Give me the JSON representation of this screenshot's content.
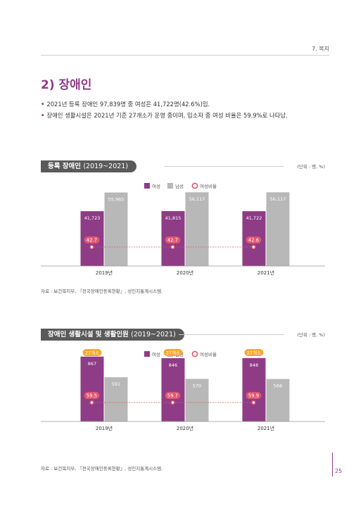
{
  "header": {
    "section_label": "7. 복지"
  },
  "page": {
    "title": "2) 장애인",
    "number": "25"
  },
  "bullets": [
    "2021년 등록 장애인 97,839명 중 여성은 41,722명(42.6%)임.",
    "장애인 생활시설은 2021년 기준 27개소가 운영 중이며, 입소자 중 여성 비율은 59.9%로 나타남."
  ],
  "bullet_marker": "•",
  "colors": {
    "female": "#8e3c86",
    "male": "#b8b8b8",
    "ratio": "#e0566f",
    "title_bg": "#5a5a5a",
    "accent": "#8e3c86",
    "badge": "#f4a92b"
  },
  "chart_data": [
    {
      "type": "bar",
      "title_bold": "등록 장애인",
      "title_years": "(2019~2021)",
      "unit": "(단위 : 명, %)",
      "legend": {
        "female": "여성",
        "male": "남성",
        "ratio": "여성비율"
      },
      "categories": [
        "2019년",
        "2020년",
        "2021년"
      ],
      "series": [
        {
          "name": "여성",
          "values": [
            41723,
            41815,
            41722
          ],
          "labels": [
            "41,723",
            "41,815",
            "41,722"
          ]
        },
        {
          "name": "남성",
          "values": [
            55965,
            56117,
            56117
          ],
          "labels": [
            "55,965",
            "56,117",
            "56,117"
          ]
        }
      ],
      "ratio": {
        "name": "여성비율",
        "values": [
          42.7,
          42.7,
          42.6
        ],
        "labels": [
          "42.7",
          "42.7",
          "42.6"
        ]
      },
      "ylim": [
        0,
        60000
      ],
      "badges": [],
      "source": "자료 : 보건복지부, 『전국장애인등록현황』, 성인지통계시스템."
    },
    {
      "type": "bar",
      "title_bold": "장애인 생활시설 및 생활인원",
      "title_years": "(2019~2021)",
      "unit": "(단위 : 명, %)",
      "legend": {
        "female": "여성",
        "male": "남성",
        "ratio": "여성비율"
      },
      "categories": [
        "2019년",
        "2020년",
        "2021년"
      ],
      "series": [
        {
          "name": "여성",
          "values": [
            867,
            846,
            848
          ],
          "labels": [
            "867",
            "846",
            "848"
          ]
        },
        {
          "name": "남성",
          "values": [
            591,
            570,
            568
          ],
          "labels": [
            "591",
            "570",
            "568"
          ]
        }
      ],
      "ratio": {
        "name": "여성비율",
        "values": [
          59.5,
          59.7,
          59.9
        ],
        "labels": [
          "59.5",
          "59.7",
          "59.9"
        ]
      },
      "ylim": [
        0,
        940
      ],
      "badges": [
        "27개소",
        "27개소",
        "27개소"
      ],
      "source": "자료 : 보건복지부, 『전국장애인등록현황』, 성인지통계시스템."
    }
  ]
}
